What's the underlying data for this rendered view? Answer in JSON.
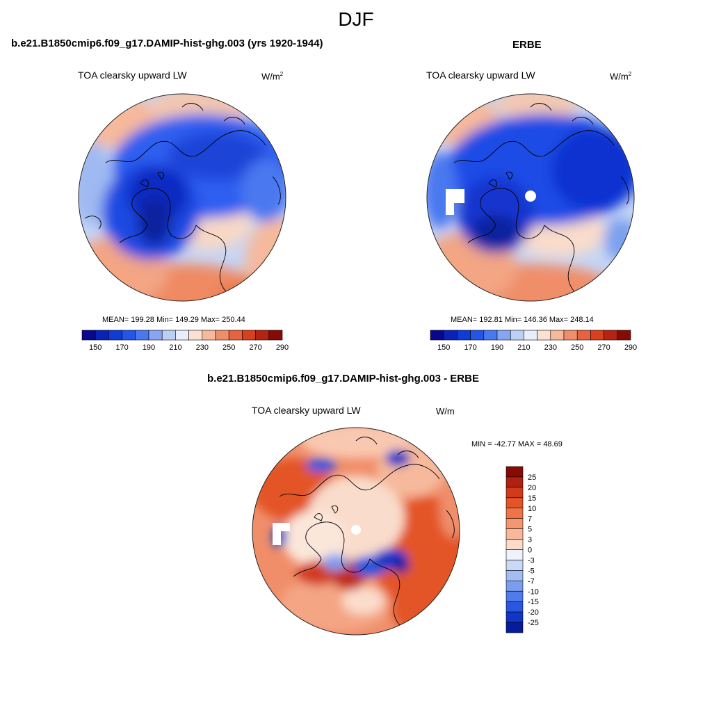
{
  "figure": {
    "title": "DJF"
  },
  "panels": {
    "model": {
      "title": "b.e21.B1850cmip6.f09_g17.DAMIP-hist-ghg.003 (yrs 1920-1944)",
      "variable": "TOA clearsky upward LW",
      "units_base": "W/m",
      "units_exp": "2",
      "stats": "MEAN= 199.28  Min= 149.29  Max= 250.44"
    },
    "obs": {
      "title": "ERBE",
      "variable": "TOA clearsky upward LW",
      "units_base": "W/m",
      "units_exp": "2",
      "stats": "MEAN= 192.81  Min= 146.36  Max= 248.14"
    },
    "diff": {
      "title": "b.e21.B1850cmip6.f09_g17.DAMIP-hist-ghg.003 - ERBE",
      "variable": "TOA clearsky upward LW",
      "units": "W/m",
      "stats": "MIN = -42.77 MAX =  48.69"
    }
  },
  "chart_data": [
    {
      "type": "heatmap",
      "projection": "north-polar-stereographic",
      "title": "b.e21.B1850cmip6.f09_g17.DAMIP-hist-ghg.003 (yrs 1920-1944)",
      "variable": "TOA clearsky upward LW",
      "units": "W/m2",
      "mean": 199.28,
      "min": 149.29,
      "max": 250.44,
      "colorbar": {
        "orientation": "horizontal",
        "tick_labels": [
          "150",
          "170",
          "190",
          "210",
          "230",
          "250",
          "270",
          "290"
        ],
        "colors": [
          "#08088f",
          "#0a22b8",
          "#0f3bd6",
          "#2356e8",
          "#4a78f0",
          "#86a6f4",
          "#bcd0f6",
          "#e8eefa",
          "#fbe1d2",
          "#f6b99c",
          "#f08e6a",
          "#e7623e",
          "#d9401e",
          "#b52412",
          "#870b04"
        ]
      }
    },
    {
      "type": "heatmap",
      "projection": "north-polar-stereographic",
      "title": "ERBE",
      "variable": "TOA clearsky upward LW",
      "units": "W/m2",
      "mean": 192.81,
      "min": 146.36,
      "max": 248.14,
      "colorbar": {
        "orientation": "horizontal",
        "tick_labels": [
          "150",
          "170",
          "190",
          "210",
          "230",
          "250",
          "270",
          "290"
        ],
        "colors": [
          "#08088f",
          "#0a22b8",
          "#0f3bd6",
          "#2356e8",
          "#4a78f0",
          "#86a6f4",
          "#bcd0f6",
          "#e8eefa",
          "#fbe1d2",
          "#f6b99c",
          "#f08e6a",
          "#e7623e",
          "#d9401e",
          "#b52412",
          "#870b04"
        ]
      }
    },
    {
      "type": "heatmap",
      "projection": "north-polar-stereographic",
      "title": "b.e21.B1850cmip6.f09_g17.DAMIP-hist-ghg.003 - ERBE",
      "variable": "TOA clearsky upward LW",
      "units": "W/m",
      "min": -42.77,
      "max": 48.69,
      "colorbar": {
        "orientation": "vertical",
        "tick_labels": [
          "25",
          "20",
          "15",
          "10",
          "7",
          "5",
          "3",
          "0",
          "-3",
          "-5",
          "-7",
          "-10",
          "-15",
          "-20",
          "-25"
        ],
        "colors": [
          "#870b04",
          "#b02210",
          "#d23a1a",
          "#e35528",
          "#ef7548",
          "#f59670",
          "#f9b89a",
          "#fbdccb",
          "#eef2fb",
          "#c9d9f6",
          "#a3bdf2",
          "#7b9df0",
          "#507bec",
          "#2a56e0",
          "#1135c8",
          "#061c9a"
        ]
      }
    }
  ]
}
